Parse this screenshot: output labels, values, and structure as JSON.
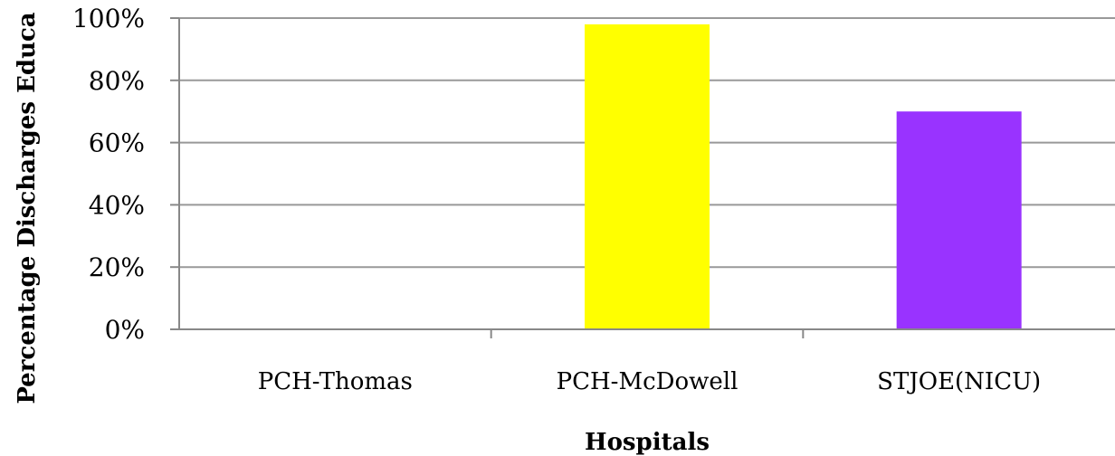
{
  "chart_data": {
    "type": "bar",
    "categories": [
      "PCH-Thomas",
      "PCH-McDowell",
      "STJOE(NICU)"
    ],
    "values": [
      0,
      98,
      70
    ],
    "colors": [
      "#ffff00",
      "#ffff00",
      "#9933ff"
    ],
    "title": "",
    "xlabel": "Hospitals",
    "ylabel": "Percentage Discharges Educa",
    "ylim": [
      0,
      100
    ],
    "yticks": [
      "0%",
      "20%",
      "40%",
      "60%",
      "80%",
      "100%"
    ],
    "grid": true,
    "gridline_color": "#999999"
  }
}
